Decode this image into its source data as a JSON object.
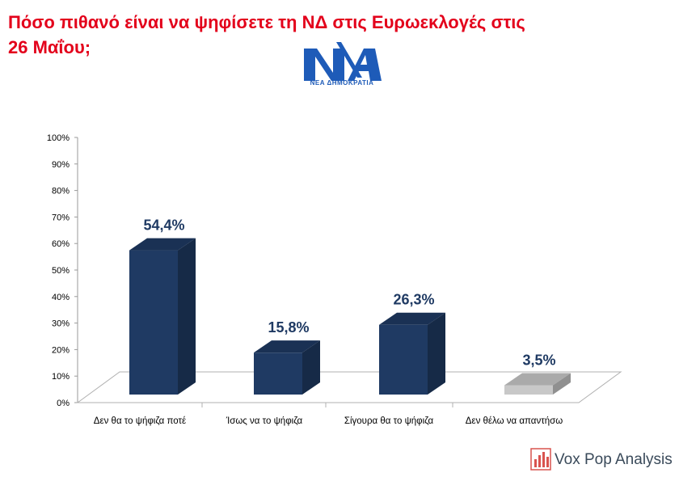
{
  "title": "Πόσο πιθανό είναι να ψηφίσετε τη ΝΔ  στις Ευρωεκλογές στις\n26 Μαΐου;",
  "logo": {
    "icon": "nd-party-logo",
    "text": "ΝΕΑ ΔΗΜΟΚΡΑΤΙΑ",
    "color": "#1e5bb8"
  },
  "source": {
    "icon": "bar-chart-icon",
    "name": "Vox Pop Analysis"
  },
  "chart_data": {
    "type": "bar",
    "title": "",
    "xlabel": "",
    "ylabel": "",
    "categories": [
      "Δεν θα το ψήφιζα ποτέ",
      "Ίσως να το ψήφιζα",
      "Σίγουρα θα το ψήφιζα",
      "Δεν θέλω να απαντήσω"
    ],
    "values": [
      54.4,
      15.8,
      26.3,
      3.5
    ],
    "labels": [
      "54,4%",
      "15,8%",
      "26,3%",
      "3,5%"
    ],
    "ylim": [
      0,
      100
    ],
    "yticks": [
      "0%",
      "10%",
      "20%",
      "30%",
      "40%",
      "50%",
      "60%",
      "70%",
      "80%",
      "90%",
      "100%"
    ],
    "grid": false,
    "legend": "none",
    "colors": [
      "#1f3a63",
      "#1f3a63",
      "#1f3a63",
      "#c8c8c8"
    ],
    "label_color": "#1f3a63"
  }
}
